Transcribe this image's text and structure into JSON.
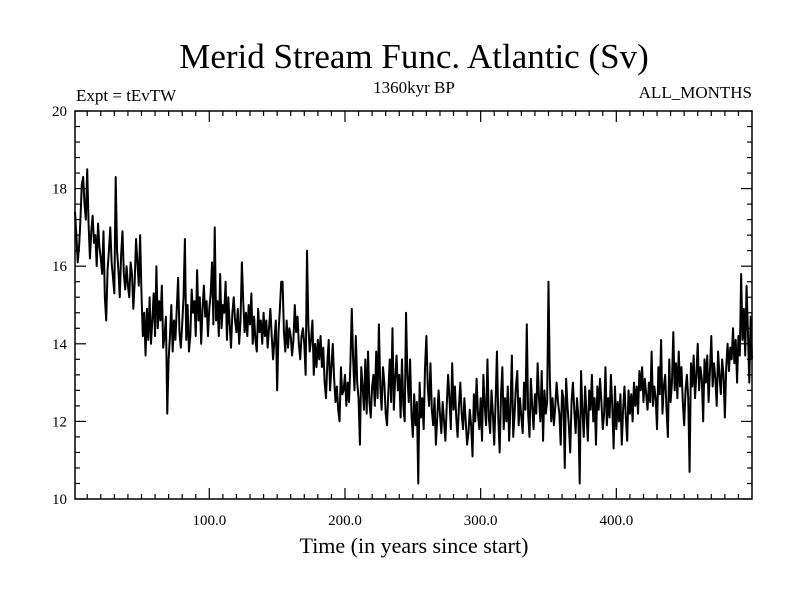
{
  "chart_data": {
    "type": "line",
    "title": "Merid Stream Func. Atlantic (Sv)",
    "subtitle_left": "Expt = tEvTW",
    "subtitle_center": "1360kyr BP",
    "subtitle_right": "ALL_MONTHS",
    "xlabel": "Time (in years since start)",
    "ylabel": "",
    "xlim": [
      1,
      500
    ],
    "ylim": [
      10,
      20
    ],
    "x_major_ticks": [
      100,
      200,
      300,
      400
    ],
    "x_tick_labels": [
      "100.0",
      "200.0",
      "300.0",
      "400.0"
    ],
    "y_major_ticks": [
      10,
      12,
      14,
      16,
      18,
      20
    ],
    "y_tick_labels": [
      "10",
      "12",
      "14",
      "16",
      "18",
      "20"
    ],
    "grid": false,
    "line_color": "#000000",
    "series": [
      {
        "name": "Merid Stream Func. Atlantic",
        "x_start": 1,
        "x_step": 1,
        "values": [
          17.4,
          16.8,
          16.1,
          16.5,
          17.2,
          18.1,
          18.3,
          17.6,
          17.2,
          18.5,
          17.1,
          16.2,
          16.9,
          17.3,
          16.6,
          16.8,
          16.0,
          17.1,
          16.5,
          16.2,
          15.8,
          16.9,
          15.2,
          14.6,
          15.9,
          16.4,
          17.0,
          16.1,
          15.7,
          15.3,
          18.3,
          16.4,
          15.9,
          15.2,
          16.3,
          16.9,
          15.8,
          15.4,
          16.0,
          15.5,
          15.2,
          16.1,
          15.8,
          14.9,
          15.6,
          16.7,
          16.1,
          15.5,
          16.8,
          15.3,
          14.2,
          14.8,
          13.7,
          14.9,
          14.1,
          15.2,
          14.0,
          14.6,
          15.3,
          14.2,
          16.0,
          14.4,
          15.1,
          14.6,
          15.5,
          13.9,
          14.2,
          14.7,
          12.2,
          13.6,
          14.2,
          15.0,
          13.8,
          14.6,
          14.1,
          14.9,
          15.7,
          14.3,
          13.9,
          14.5,
          15.2,
          16.7,
          14.1,
          15.0,
          13.8,
          14.2,
          15.4,
          14.8,
          15.1,
          14.2,
          15.9,
          14.6,
          15.2,
          14.0,
          14.9,
          15.5,
          14.7,
          15.1,
          14.2,
          14.9,
          15.3,
          16.1,
          14.5,
          17.0,
          14.6,
          15.1,
          14.2,
          15.8,
          14.4,
          15.0,
          14.8,
          15.6,
          14.1,
          15.2,
          14.5,
          13.9,
          14.8,
          15.2,
          14.6,
          14.3,
          14.9,
          14.0,
          14.6,
          16.1,
          15.1,
          14.3,
          14.8,
          14.2,
          15.0,
          14.5,
          15.3,
          14.0,
          14.7,
          14.1,
          13.8,
          14.9,
          14.3,
          14.6,
          14.0,
          14.8,
          14.2,
          14.6,
          13.9,
          14.4,
          14.9,
          14.2,
          13.6,
          14.1,
          14.6,
          12.8,
          14.3,
          14.9,
          15.6,
          15.6,
          14.3,
          13.8,
          14.6,
          13.9,
          14.4,
          14.2,
          13.7,
          14.1,
          15.0,
          14.3,
          14.7,
          14.0,
          13.6,
          14.2,
          14.4,
          14.0,
          13.2,
          16.4,
          14.5,
          13.8,
          14.1,
          14.6,
          13.2,
          14.0,
          13.4,
          14.1,
          13.6,
          14.2,
          13.4,
          13.9,
          13.0,
          12.6,
          13.5,
          14.1,
          12.8,
          13.4,
          14.0,
          13.1,
          12.5,
          12.9,
          12.3,
          12.0,
          13.4,
          12.7,
          12.8,
          13.2,
          12.4,
          13.0,
          12.5,
          13.5,
          14.9,
          13.6,
          12.8,
          14.2,
          13.0,
          12.6,
          11.4,
          13.4,
          12.9,
          12.3,
          13.6,
          12.2,
          13.8,
          12.5,
          12.1,
          12.9,
          13.2,
          12.4,
          13.8,
          12.6,
          14.5,
          12.9,
          12.3,
          13.4,
          13.0,
          12.2,
          11.9,
          12.8,
          13.6,
          12.5,
          14.4,
          12.3,
          13.1,
          13.7,
          12.8,
          13.2,
          12.1,
          13.6,
          12.4,
          12.0,
          14.8,
          13.2,
          12.5,
          13.6,
          12.2,
          11.6,
          12.7,
          11.9,
          12.5,
          10.4,
          13.0,
          12.1,
          12.6,
          11.8,
          13.4,
          14.2,
          12.9,
          12.4,
          13.5,
          12.3,
          11.9,
          12.6,
          11.4,
          12.1,
          12.8,
          12.2,
          11.7,
          12.5,
          12.0,
          11.5,
          12.4,
          13.2,
          12.6,
          11.8,
          13.5,
          12.3,
          12.9,
          12.1,
          11.6,
          12.4,
          13.0,
          12.2,
          11.8,
          12.6,
          12.0,
          11.4,
          11.7,
          12.3,
          11.9,
          11.1,
          12.7,
          12.0,
          13.1,
          12.2,
          11.8,
          12.6,
          11.5,
          13.2,
          12.4,
          11.9,
          13.6,
          12.1,
          11.7,
          12.8,
          12.2,
          11.4,
          12.5,
          13.8,
          12.1,
          11.2,
          12.7,
          13.4,
          11.8,
          12.6,
          12.0,
          12.9,
          11.5,
          12.4,
          13.7,
          11.6,
          12.2,
          12.9,
          13.3,
          11.9,
          12.6,
          12.1,
          11.7,
          13.0,
          12.3,
          14.5,
          12.2,
          11.6,
          13.1,
          12.4,
          11.8,
          12.7,
          12.2,
          13.5,
          12.6,
          12.0,
          13.3,
          11.5,
          12.8,
          12.2,
          12.5,
          15.6,
          13.1,
          12.0,
          12.6,
          11.9,
          12.4,
          13.0,
          12.5,
          12.2,
          11.4,
          12.8,
          12.6,
          10.8,
          13.1,
          12.4,
          11.9,
          11.2,
          12.5,
          13.0,
          12.3,
          11.7,
          12.6,
          12.1,
          10.4,
          13.3,
          12.3,
          11.6,
          12.9,
          12.2,
          11.5,
          12.8,
          12.3,
          13.2,
          12.0,
          12.6,
          11.4,
          12.9,
          12.3,
          13.1,
          12.5,
          11.8,
          12.2,
          13.4,
          11.9,
          12.6,
          12.1,
          13.2,
          12.4,
          11.3,
          12.9,
          11.8,
          12.5,
          12.0,
          12.7,
          11.4,
          12.3,
          12.9,
          12.1,
          11.5,
          12.8,
          12.2,
          12.7,
          12.0,
          13.0,
          12.4,
          12.9,
          12.2,
          13.3,
          12.8,
          13.4,
          12.5,
          13.1,
          12.7,
          12.3,
          13.0,
          12.5,
          13.8,
          12.4,
          12.9,
          12.6,
          11.8,
          13.4,
          12.7,
          14.1,
          12.2,
          12.9,
          13.2,
          12.3,
          11.6,
          13.6,
          12.5,
          13.0,
          14.3,
          12.8,
          13.5,
          12.6,
          13.8,
          12.9,
          13.4,
          12.5,
          11.9,
          12.8,
          13.2,
          12.6,
          10.7,
          13.5,
          12.9,
          13.7,
          12.6,
          13.2,
          14.0,
          12.8,
          13.4,
          13.1,
          12.0,
          13.6,
          13.0,
          13.7,
          12.5,
          13.3,
          14.2,
          12.9,
          13.5,
          13.1,
          12.4,
          13.8,
          13.2,
          12.7,
          13.6,
          13.2,
          12.1,
          13.4,
          14.0,
          13.3,
          13.9,
          13.6,
          14.4,
          13.5,
          14.1,
          13.0,
          14.2,
          13.7,
          15.8,
          14.1,
          14.9,
          13.7,
          15.5,
          14.3,
          13.0,
          14.7,
          13.6
        ]
      }
    ]
  }
}
